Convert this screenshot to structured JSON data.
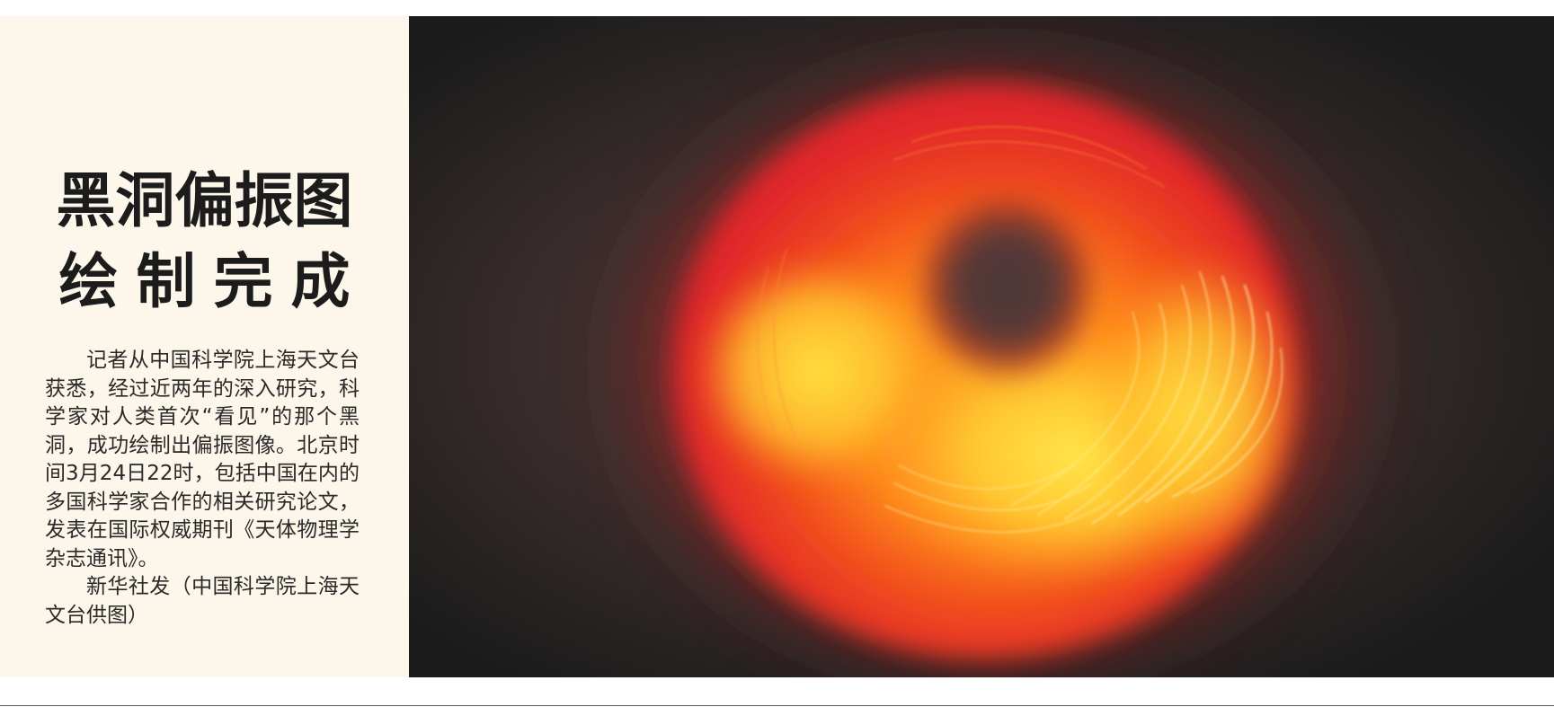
{
  "headline": {
    "line1": "黑洞偏振图",
    "line2": "绘制完成"
  },
  "article": {
    "paragraph1": "记者从中国科学院上海天文台获悉，经过近两年的深入研究，科学家对人类首次“看见”的那个黑洞，成功绘制出偏振图像。北京时间3月24日22时，包括中国在内的多国科学家合作的相关研究论文，发表在国际权威期刊《天体物理学杂志通讯》。",
    "credit": "新华社发（中国科学院上海天文台供图）"
  },
  "colors": {
    "panel_background": "#fdf6ea",
    "photo_background": "#1b1b1b",
    "ring_red": "#e0262a",
    "ring_orange": "#f26a1e",
    "ring_yellow": "#ffd23a"
  }
}
